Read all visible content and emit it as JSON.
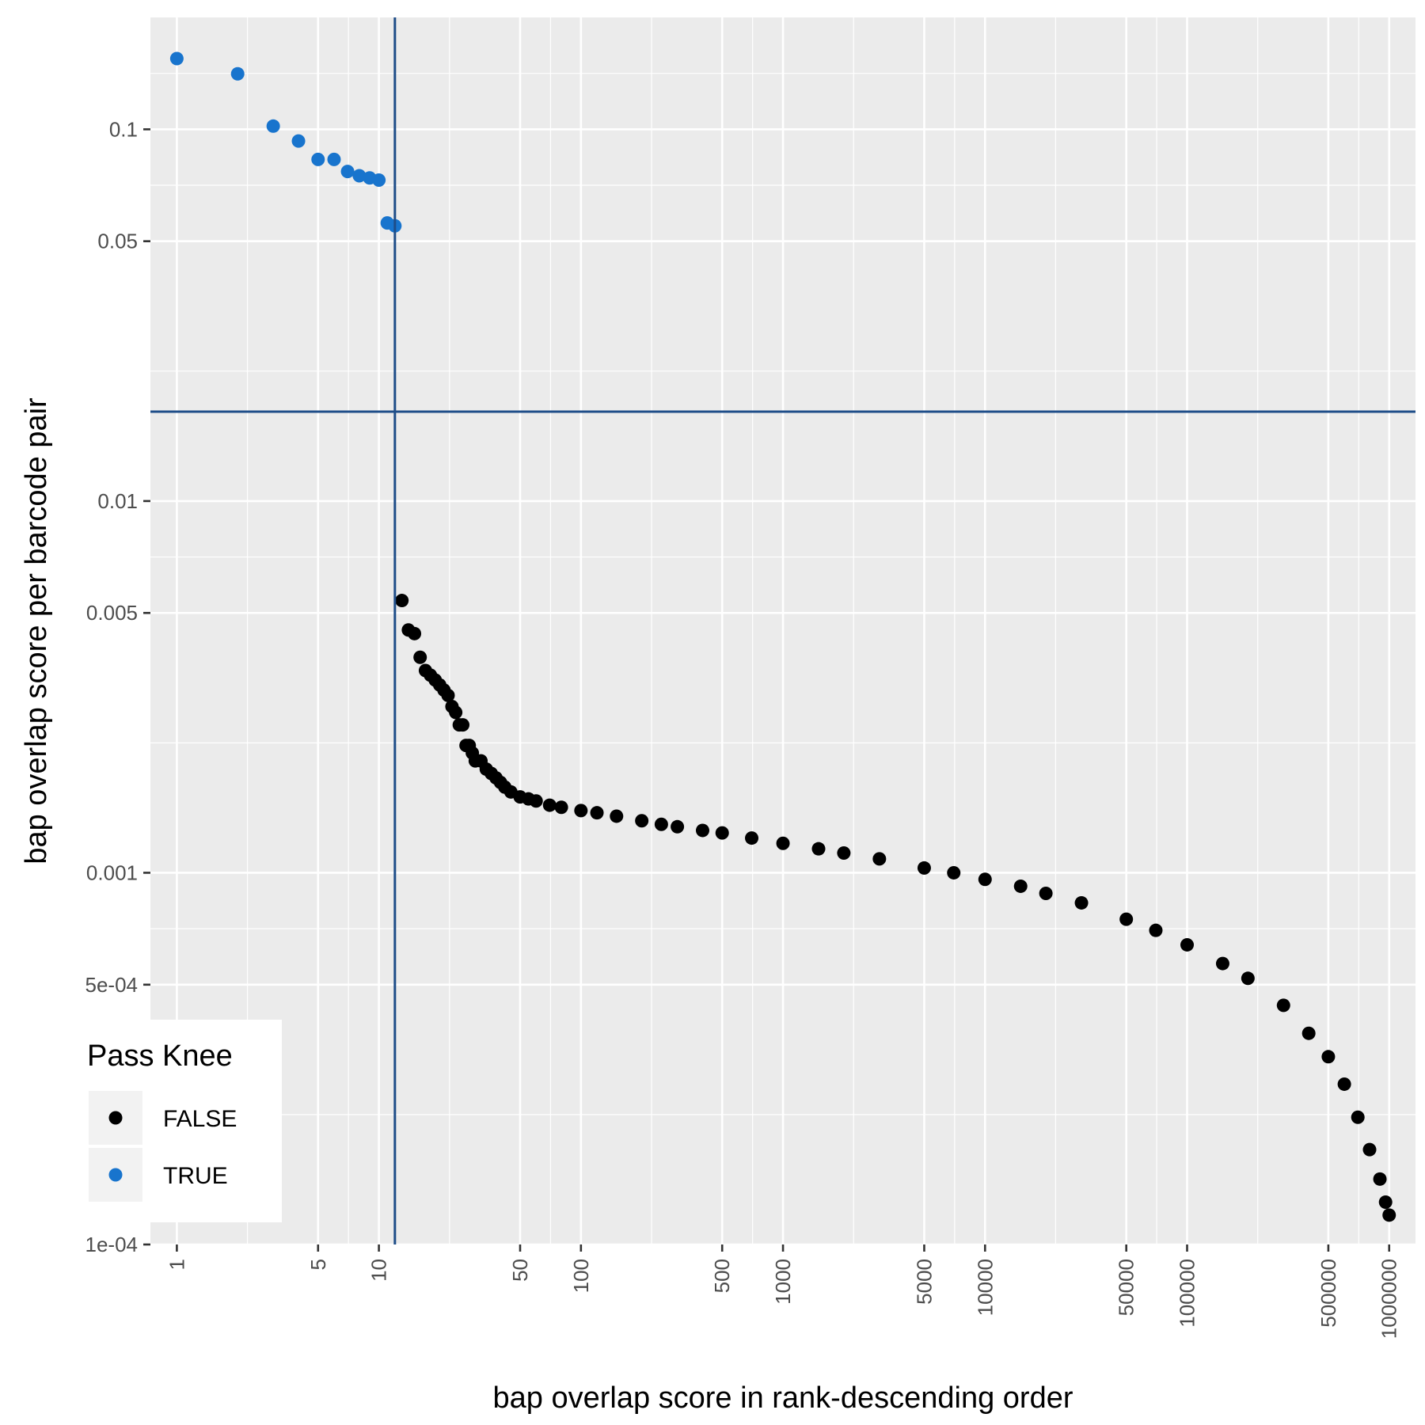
{
  "chart_data": {
    "type": "scatter",
    "title": "",
    "xlabel": "bap overlap score in rank-descending order",
    "ylabel": "bap overlap score per barcode pair",
    "x_scale": "log10",
    "y_scale": "log10",
    "xlim": [
      0.74,
      1350000
    ],
    "ylim": [
      0.0001,
      0.2
    ],
    "grid": true,
    "x_ticks": [
      1,
      5,
      10,
      50,
      100,
      500,
      1000,
      5000,
      10000,
      50000,
      100000,
      500000,
      1000000
    ],
    "x_tick_labels": [
      "1",
      "5",
      "10",
      "50",
      "100",
      "500",
      "1000",
      "5000",
      "10000",
      "50000",
      "100000",
      "500000",
      "1000000"
    ],
    "y_ticks": [
      0.0001,
      0.0005,
      0.001,
      0.005,
      0.01,
      0.05,
      0.1
    ],
    "y_tick_labels": [
      "1e-04",
      "5e-04",
      "0.001",
      "0.005",
      "0.01",
      "0.05",
      "0.1"
    ],
    "reference_lines": {
      "vertical_x": 12,
      "horizontal_y": 0.0174,
      "color": "#1f4e89"
    },
    "legend": {
      "title": "Pass Knee",
      "placement": "bottom-left",
      "entries": [
        {
          "label": "FALSE",
          "color": "#000000"
        },
        {
          "label": "TRUE",
          "color": "#1874cd"
        }
      ]
    },
    "series": [
      {
        "name": "TRUE",
        "color": "#1874cd",
        "points": [
          [
            1,
            0.155
          ],
          [
            2,
            0.141
          ],
          [
            3,
            0.102
          ],
          [
            4,
            0.093
          ],
          [
            5,
            0.083
          ],
          [
            6,
            0.083
          ],
          [
            7,
            0.077
          ],
          [
            8,
            0.075
          ],
          [
            9,
            0.074
          ],
          [
            10,
            0.073
          ],
          [
            11,
            0.056
          ],
          [
            12,
            0.055
          ]
        ]
      },
      {
        "name": "FALSE",
        "color": "#000000",
        "points": [
          [
            13,
            0.0054
          ],
          [
            14,
            0.0045
          ],
          [
            15,
            0.0044
          ],
          [
            16,
            0.0038
          ],
          [
            17,
            0.0035
          ],
          [
            18,
            0.0034
          ],
          [
            19,
            0.0033
          ],
          [
            20,
            0.0032
          ],
          [
            21,
            0.0031
          ],
          [
            22,
            0.003
          ],
          [
            23,
            0.0028
          ],
          [
            24,
            0.0027
          ],
          [
            25,
            0.0025
          ],
          [
            26,
            0.0025
          ],
          [
            27,
            0.0022
          ],
          [
            28,
            0.0022
          ],
          [
            29,
            0.0021
          ],
          [
            30,
            0.002
          ],
          [
            32,
            0.002
          ],
          [
            34,
            0.0019
          ],
          [
            36,
            0.00185
          ],
          [
            38,
            0.0018
          ],
          [
            40,
            0.00175
          ],
          [
            42,
            0.0017
          ],
          [
            45,
            0.00165
          ],
          [
            50,
            0.0016
          ],
          [
            55,
            0.00158
          ],
          [
            60,
            0.00156
          ],
          [
            70,
            0.00152
          ],
          [
            80,
            0.0015
          ],
          [
            100,
            0.00147
          ],
          [
            120,
            0.00145
          ],
          [
            150,
            0.00142
          ],
          [
            200,
            0.00138
          ],
          [
            250,
            0.00135
          ],
          [
            300,
            0.00133
          ],
          [
            400,
            0.0013
          ],
          [
            500,
            0.00128
          ],
          [
            700,
            0.00124
          ],
          [
            1000,
            0.0012
          ],
          [
            1500,
            0.00116
          ],
          [
            2000,
            0.00113
          ],
          [
            3000,
            0.00109
          ],
          [
            5000,
            0.00103
          ],
          [
            7000,
            0.001
          ],
          [
            10000,
            0.00096
          ],
          [
            15000,
            0.00092
          ],
          [
            20000,
            0.00088
          ],
          [
            30000,
            0.00083
          ],
          [
            50000,
            0.00075
          ],
          [
            70000,
            0.0007
          ],
          [
            100000,
            0.00064
          ],
          [
            150000,
            0.00057
          ],
          [
            200000,
            0.00052
          ],
          [
            300000,
            0.00044
          ],
          [
            400000,
            0.00037
          ],
          [
            500000,
            0.00032
          ],
          [
            600000,
            0.00027
          ],
          [
            700000,
            0.00022
          ],
          [
            800000,
            0.00018
          ],
          [
            900000,
            0.00015
          ],
          [
            960000,
            0.00013
          ],
          [
            1000000,
            0.00012
          ]
        ]
      }
    ]
  }
}
